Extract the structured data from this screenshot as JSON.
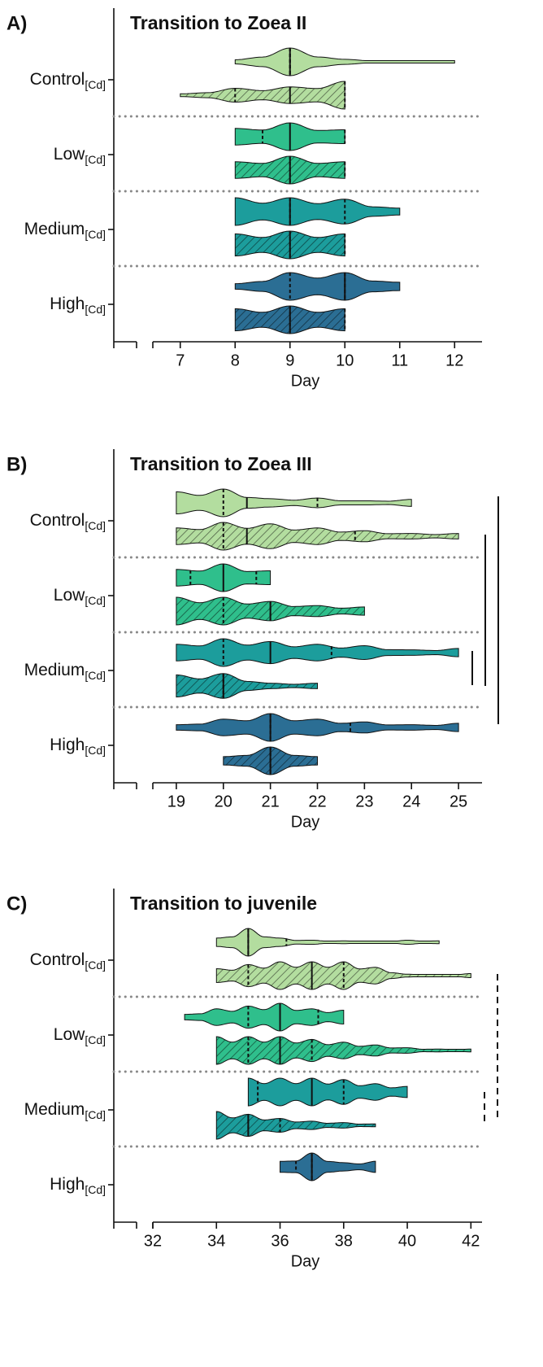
{
  "chart_data": [
    {
      "type": "violin",
      "panel_label": "A)",
      "title": "Transition to Zoea II",
      "xlabel": "Day",
      "xlim": [
        6.5,
        12.5
      ],
      "xticks": [
        7,
        8,
        9,
        10,
        11,
        12
      ],
      "groups": [
        {
          "label": "Control",
          "sub": "[Cd]",
          "color": "#b3dd9f",
          "violins": [
            {
              "fill": "solid",
              "days": [
                8,
                9,
                10,
                11,
                12
              ],
              "density": [
                0.15,
                1,
                0.18,
                0.04,
                0.04
              ],
              "median": 9,
              "quartiles": [
                9,
                9
              ]
            },
            {
              "fill": "hatched",
              "days": [
                7,
                8,
                9,
                10
              ],
              "density": [
                0.1,
                0.5,
                0.6,
                1
              ],
              "median": 9,
              "quartiles": [
                8,
                10
              ]
            }
          ]
        },
        {
          "label": "Low",
          "sub": "[Cd]",
          "color": "#2fbf8c",
          "violins": [
            {
              "fill": "solid",
              "days": [
                8,
                9,
                10
              ],
              "density": [
                0.6,
                1,
                0.5
              ],
              "median": 9,
              "quartiles": [
                8.5,
                10
              ]
            },
            {
              "fill": "hatched",
              "days": [
                8,
                9,
                10
              ],
              "density": [
                0.6,
                1,
                0.6
              ],
              "median": 9,
              "quartiles": [
                9,
                10
              ]
            }
          ]
        },
        {
          "label": "Medium",
          "sub": "[Cd]",
          "color": "#1c9d9c",
          "violins": [
            {
              "fill": "solid",
              "days": [
                8,
                9,
                10,
                11
              ],
              "density": [
                1,
                1,
                0.9,
                0.25
              ],
              "median": 9,
              "quartiles": [
                9,
                10
              ]
            },
            {
              "fill": "hatched",
              "days": [
                8,
                9,
                10
              ],
              "density": [
                0.8,
                1,
                0.8
              ],
              "median": 9,
              "quartiles": [
                9,
                10
              ]
            }
          ]
        },
        {
          "label": "High",
          "sub": "[Cd]",
          "color": "#2b6e94",
          "violins": [
            {
              "fill": "solid",
              "days": [
                8,
                9,
                10,
                11
              ],
              "density": [
                0.2,
                1,
                1,
                0.3
              ],
              "median": 10,
              "quartiles": [
                9,
                10
              ]
            },
            {
              "fill": "hatched",
              "days": [
                8,
                9,
                10
              ],
              "density": [
                0.8,
                1,
                0.8
              ],
              "median": 9,
              "quartiles": [
                9,
                10
              ]
            }
          ]
        }
      ]
    },
    {
      "type": "violin",
      "panel_label": "B)",
      "title": "Transition to Zoea III",
      "xlabel": "Day",
      "xlim": [
        18.5,
        25.5
      ],
      "xticks": [
        19,
        20,
        21,
        22,
        23,
        24,
        25
      ],
      "groups": [
        {
          "label": "Control",
          "sub": "[Cd]",
          "color": "#b3dd9f",
          "violins": [
            {
              "fill": "solid",
              "days": [
                19,
                20,
                21,
                22,
                23,
                24
              ],
              "density": [
                0.8,
                1,
                0.3,
                0.35,
                0.15,
                0.25
              ],
              "median": 20.5,
              "quartiles": [
                20,
                22
              ]
            },
            {
              "fill": "hatched",
              "days": [
                19,
                20,
                21,
                22,
                23,
                24,
                25
              ],
              "density": [
                0.6,
                1,
                0.9,
                0.6,
                0.4,
                0.2,
                0.2
              ],
              "median": 20.5,
              "quartiles": [
                20,
                22.8
              ]
            }
          ]
        },
        {
          "label": "Low",
          "sub": "[Cd]",
          "color": "#2fbf8c",
          "violins": [
            {
              "fill": "solid",
              "days": [
                19,
                20,
                21
              ],
              "density": [
                0.6,
                1,
                0.5
              ],
              "median": 20,
              "quartiles": [
                19.3,
                20.7
              ]
            },
            {
              "fill": "hatched",
              "days": [
                19,
                20,
                21,
                22,
                23
              ],
              "density": [
                1,
                1,
                0.7,
                0.4,
                0.3
              ],
              "median": 21,
              "quartiles": [
                20,
                21
              ]
            }
          ]
        },
        {
          "label": "Medium",
          "sub": "[Cd]",
          "color": "#1c9d9c",
          "violins": [
            {
              "fill": "solid",
              "days": [
                19,
                20,
                21,
                22,
                23,
                24,
                25
              ],
              "density": [
                0.6,
                1,
                0.8,
                0.6,
                0.5,
                0.2,
                0.3
              ],
              "median": 21,
              "quartiles": [
                20,
                22.3
              ]
            },
            {
              "fill": "hatched",
              "days": [
                19,
                20,
                21,
                22
              ],
              "density": [
                0.8,
                0.9,
                0.2,
                0.2
              ],
              "median": 20,
              "quartiles": [
                20,
                20
              ]
            }
          ]
        },
        {
          "label": "High",
          "sub": "[Cd]",
          "color": "#2b6e94",
          "violins": [
            {
              "fill": "solid",
              "days": [
                19,
                20,
                21,
                22,
                23,
                24,
                25
              ],
              "density": [
                0.2,
                0.6,
                1,
                0.6,
                0.4,
                0.2,
                0.3
              ],
              "median": 21,
              "quartiles": [
                21,
                22.7
              ]
            },
            {
              "fill": "hatched",
              "days": [
                20,
                21,
                22
              ],
              "density": [
                0.3,
                1,
                0.3
              ],
              "median": 21,
              "quartiles": [
                21,
                21
              ]
            }
          ]
        }
      ]
    },
    {
      "type": "violin",
      "panel_label": "C)",
      "title": "Transition to juvenile",
      "xlabel": "Day",
      "xlim": [
        32,
        42.35
      ],
      "xticks": [
        32,
        34,
        36,
        38,
        40,
        42
      ],
      "groups": [
        {
          "label": "Control",
          "sub": "[Cd]",
          "color": "#b3dd9f",
          "violins": [
            {
              "fill": "solid",
              "days": [
                34,
                35,
                36,
                37,
                38,
                39,
                40,
                41
              ],
              "density": [
                0.3,
                1,
                0.3,
                0.15,
                0.1,
                0.05,
                0.15,
                0.1
              ],
              "median": 35,
              "quartiles": [
                35,
                36.2
              ]
            },
            {
              "fill": "hatched",
              "days": [
                34,
                35,
                36,
                37,
                38,
                39,
                40,
                41,
                42
              ],
              "density": [
                0.5,
                0.8,
                1,
                1,
                1,
                0.6,
                0.1,
                0.05,
                0.15
              ],
              "median": 37,
              "quartiles": [
                35,
                38
              ]
            }
          ]
        },
        {
          "label": "Low",
          "sub": "[Cd]",
          "color": "#2fbf8c",
          "violins": [
            {
              "fill": "solid",
              "days": [
                33,
                34,
                35,
                36,
                37,
                38
              ],
              "density": [
                0.2,
                0.6,
                0.8,
                1,
                0.6,
                0.5
              ],
              "median": 36,
              "quartiles": [
                35,
                37.2
              ]
            },
            {
              "fill": "hatched",
              "days": [
                34,
                35,
                36,
                37,
                38,
                39,
                40,
                41,
                42
              ],
              "density": [
                1,
                1,
                1,
                0.8,
                0.6,
                0.4,
                0.2,
                0.1,
                0.1
              ],
              "median": 36,
              "quartiles": [
                35,
                37
              ]
            }
          ]
        },
        {
          "label": "Medium",
          "sub": "[Cd]",
          "color": "#1c9d9c",
          "violins": [
            {
              "fill": "solid",
              "days": [
                35,
                36,
                37,
                38,
                39,
                40
              ],
              "density": [
                1,
                1,
                1,
                0.9,
                0.6,
                0.4
              ],
              "median": 37,
              "quartiles": [
                35.3,
                38
              ]
            },
            {
              "fill": "hatched",
              "days": [
                34,
                35,
                36,
                37,
                38,
                39
              ],
              "density": [
                1,
                0.8,
                0.5,
                0.3,
                0.2,
                0.1
              ],
              "median": 35,
              "quartiles": [
                35,
                36
              ]
            }
          ]
        },
        {
          "label": "High",
          "sub": "[Cd]",
          "color": "#2b6e94",
          "violins": [
            {
              "fill": "solid",
              "days": [
                36,
                37,
                38,
                39
              ],
              "density": [
                0.4,
                1,
                0.3,
                0.4
              ],
              "median": 37,
              "quartiles": [
                36.5,
                37
              ]
            }
          ]
        }
      ]
    }
  ]
}
